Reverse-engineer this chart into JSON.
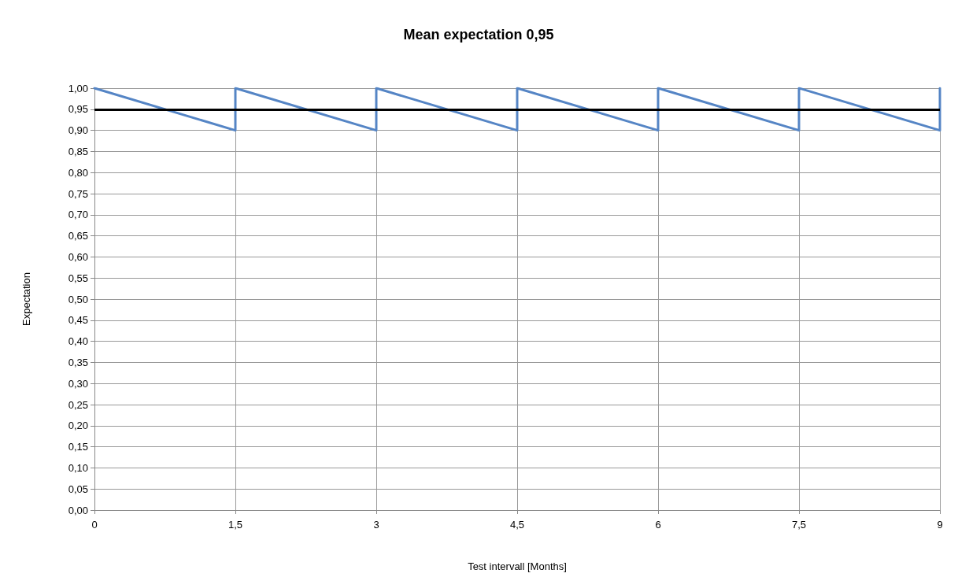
{
  "chart_data": {
    "type": "line",
    "title": "Mean expectation 0,95",
    "xlabel": "Test intervall [Months]",
    "ylabel": "Expectation",
    "series": [
      {
        "color": "#5585c5",
        "x": [
          0,
          1.5,
          1.5,
          3,
          3,
          4.5,
          4.5,
          6,
          6,
          7.5,
          7.5,
          9,
          9
        ],
        "values": [
          1,
          0.9,
          1,
          0.9,
          1,
          0.9,
          1,
          0.9,
          1,
          0.9,
          1,
          0.9,
          1
        ]
      }
    ],
    "xlim": [
      0,
      9
    ],
    "xticks": [
      0,
      {
        "value": 1.5,
        "label": "1,5"
      },
      3,
      {
        "value": 4.5,
        "label": "4,5"
      },
      6,
      {
        "value": 7.5,
        "label": "7,5"
      },
      9
    ],
    "ylim": [
      0,
      1
    ],
    "yticks": [
      {
        "value": 0,
        "label": "0,00"
      },
      {
        "value": 0.05,
        "label": "0,05"
      },
      {
        "value": 0.1,
        "label": "0,10"
      },
      {
        "value": 0.15,
        "label": "0,15"
      },
      {
        "value": 0.2,
        "label": "0,20"
      },
      {
        "value": 0.25,
        "label": "0,25"
      },
      {
        "value": 0.3,
        "label": "0,30"
      },
      {
        "value": 0.35,
        "label": "0,35"
      },
      {
        "value": 0.4,
        "label": "0,40"
      },
      {
        "value": 0.45,
        "label": "0,45"
      },
      {
        "value": 0.5,
        "label": "0,50"
      },
      {
        "value": 0.55,
        "label": "0,55"
      },
      {
        "value": 0.6,
        "label": "0,60"
      },
      {
        "value": 0.65,
        "label": "0,65"
      },
      {
        "value": 0.7,
        "label": "0,70"
      },
      {
        "value": 0.75,
        "label": "0,75"
      },
      {
        "value": 0.8,
        "label": "0,80"
      },
      {
        "value": 0.85,
        "label": "0,85"
      },
      {
        "value": 0.9,
        "label": "0,90"
      },
      {
        "value": 0.95,
        "label": "0,95"
      },
      {
        "value": 1,
        "label": "1,00"
      }
    ],
    "ref_lines": [
      {
        "axis": "y",
        "value": 0.95,
        "color": "#000000"
      }
    ],
    "grid": true,
    "marker": "none",
    "line_style": "solid"
  }
}
